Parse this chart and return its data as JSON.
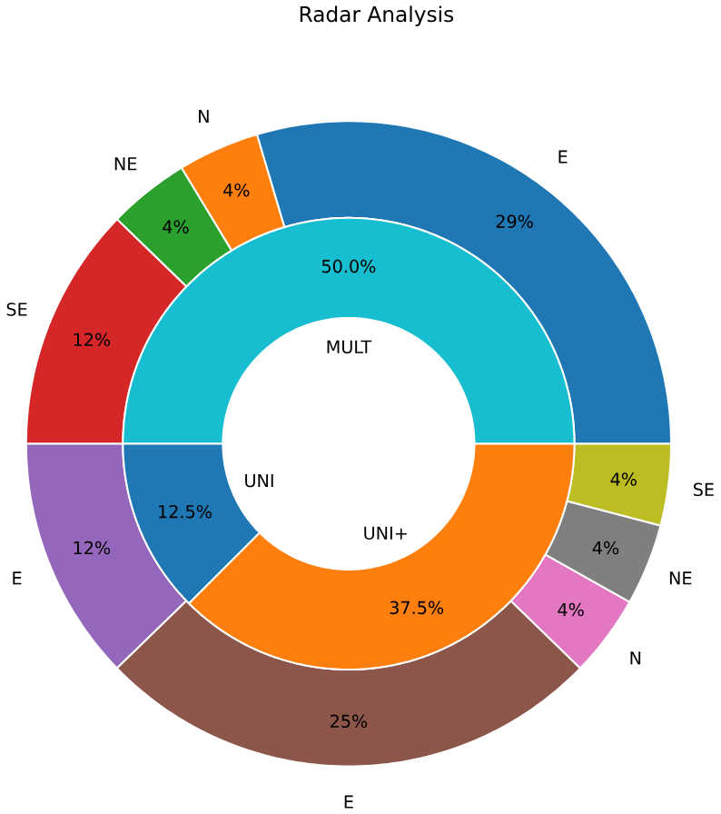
{
  "chart_data": [
    {
      "type": "donut",
      "title": "Radar Analysis",
      "categories": [
        "E",
        "N",
        "NE",
        "SE",
        "E",
        "E",
        "N",
        "NE",
        "SE"
      ],
      "values": [
        29,
        4,
        4,
        12,
        12,
        25,
        4,
        4,
        4
      ],
      "value_labels": [
        "29%",
        "4%",
        "4%",
        "12%",
        "12%",
        "25%",
        "4%",
        "4%",
        "4%"
      ],
      "colors": [
        "#1f77b4",
        "#ff7f0e",
        "#2ca02c",
        "#d62728",
        "#9467bd",
        "#8c564b",
        "#e377c2",
        "#7f7f7f",
        "#bcbd22"
      ]
    },
    {
      "type": "donut",
      "categories": [
        "MULT",
        "UNI",
        "UNI+"
      ],
      "values": [
        50,
        12.5,
        37.5
      ],
      "value_labels": [
        "50.0%",
        "12.5%",
        "37.5%"
      ],
      "colors": [
        "#17becf",
        "#1f77b4",
        "#ff7f0e"
      ]
    }
  ]
}
